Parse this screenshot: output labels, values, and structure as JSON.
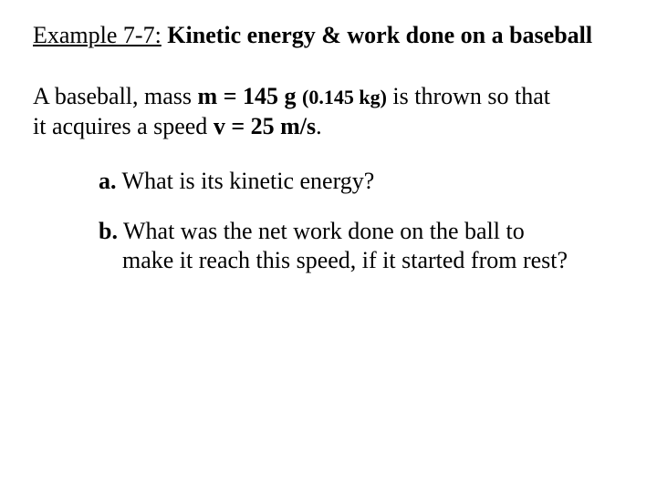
{
  "title": {
    "label": "Example 7-7:",
    "rest": "Kinetic energy & work done on a baseball"
  },
  "intro": {
    "pre": "A baseball, mass ",
    "mass": "m = 145 g",
    "mass_paren": "(0.145 kg)",
    "mid1": " is thrown so that",
    "line2_pre": "it acquires a speed ",
    "speed": "v = 25 m/s",
    "line2_post": "."
  },
  "qa": {
    "label": "a.",
    "text": " What is its kinetic energy?"
  },
  "qb": {
    "label": "b.",
    "text_line1": " What was the net work done on the ball to",
    "text_line2": "make it reach this speed, if it started from rest?"
  },
  "colors": {
    "background": "#ffffff",
    "text": "#000000"
  }
}
